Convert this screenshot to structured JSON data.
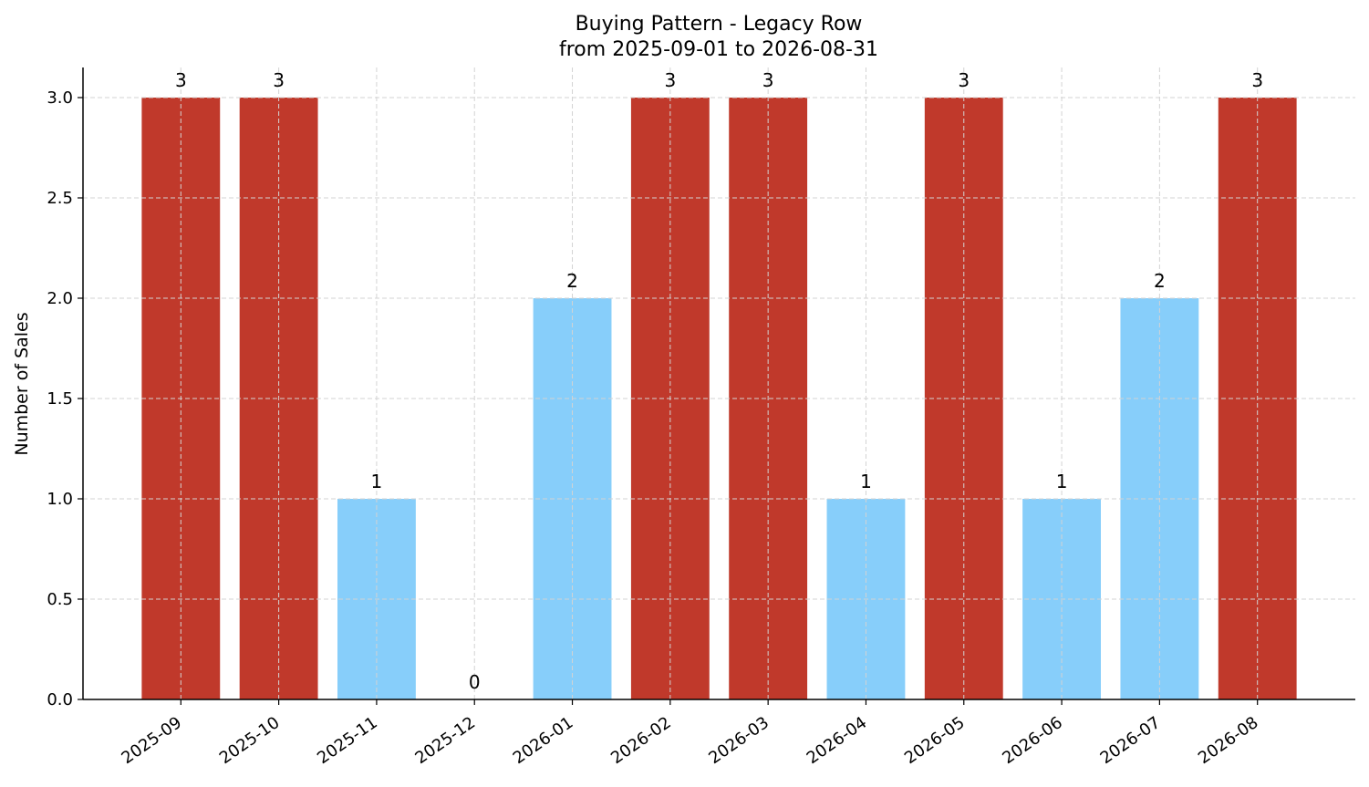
{
  "chart_data": {
    "type": "bar",
    "title": "Buying Pattern - Legacy Row",
    "subtitle": "from 2025-09-01 to 2026-08-31",
    "xlabel": "",
    "ylabel": "Number of Sales",
    "categories": [
      "2025-09",
      "2025-10",
      "2025-11",
      "2025-12",
      "2026-01",
      "2026-02",
      "2026-03",
      "2026-04",
      "2026-05",
      "2026-06",
      "2026-07",
      "2026-08"
    ],
    "values": [
      3,
      3,
      1,
      0,
      2,
      3,
      3,
      1,
      3,
      1,
      2,
      3
    ],
    "data_labels": [
      "3",
      "3",
      "1",
      "0",
      "2",
      "3",
      "3",
      "1",
      "3",
      "1",
      "2",
      "3"
    ],
    "ylim": [
      0,
      3.15
    ],
    "yticks": [
      0.0,
      0.5,
      1.0,
      1.5,
      2.0,
      2.5,
      3.0
    ],
    "ytick_labels": [
      "0.0",
      "0.5",
      "1.0",
      "1.5",
      "2.0",
      "2.5",
      "3.0"
    ],
    "grid": true,
    "colors": {
      "high": "#c0392b",
      "low": "#87cefa"
    },
    "high_threshold": 3
  }
}
